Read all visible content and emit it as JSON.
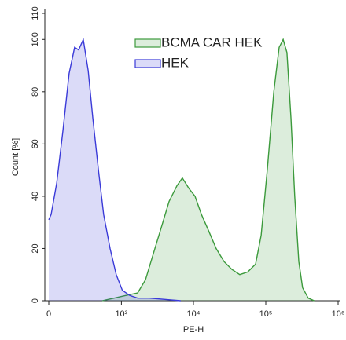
{
  "chart_data": {
    "type": "histogram-overlay",
    "x_label": "PE-H",
    "y_label": "Count [%]",
    "xscale": "biexponential",
    "xlim": [
      0,
      1000000
    ],
    "xticks": [
      0,
      {
        "value": 1000,
        "label": "10³"
      },
      {
        "value": 10000,
        "label": "10⁴"
      },
      {
        "value": 100000,
        "label": "10⁵"
      },
      {
        "value": 1000000,
        "label": "10⁶"
      }
    ],
    "ylim": [
      0,
      110
    ],
    "yticks": [
      0,
      20,
      40,
      60,
      80,
      100,
      110
    ],
    "series": [
      {
        "name": "BCMA CAR HEK",
        "color": "#3c9a3c",
        "x": [
          530,
          787,
          1150,
          1690,
          2170,
          2790,
          3590,
          4600,
          5910,
          7020,
          8650,
          10500,
          12900,
          16100,
          20600,
          26500,
          34000,
          43700,
          56200,
          72200,
          86300,
          105000,
          129000,
          153000,
          174000,
          196000,
          223000,
          251000,
          286000,
          323000,
          386000,
          467000
        ],
        "values": [
          0,
          1,
          2,
          3,
          8,
          18,
          28,
          38,
          44,
          47,
          43,
          40,
          33,
          27,
          20,
          15,
          12,
          10,
          11,
          14,
          25,
          50,
          80,
          97,
          100,
          95,
          70,
          40,
          15,
          5,
          1,
          0
        ]
      },
      {
        "name": "HEK",
        "color": "#3a3ad8",
        "x": [
          0,
          15,
          51,
          93,
          139,
          184,
          220,
          267,
          323,
          381,
          466,
          556,
          690,
          845,
          1030,
          1310,
          1690,
          2450,
          4040,
          6670
        ],
        "values": [
          31,
          33,
          45,
          65,
          87,
          97,
          96,
          100,
          88,
          70,
          50,
          33,
          20,
          10,
          4,
          2,
          1,
          1,
          0.5,
          0
        ]
      }
    ]
  }
}
